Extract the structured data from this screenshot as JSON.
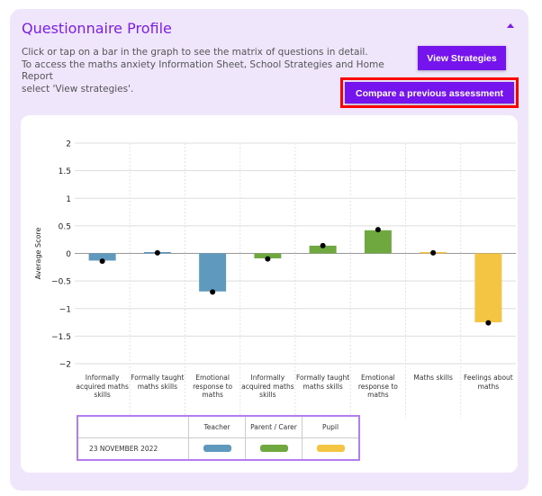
{
  "header": {
    "title": "Questionnaire Profile",
    "collapse_icon": "caret-up-icon"
  },
  "description": [
    "Click or tap on a bar in the graph to see the matrix of questions in detail.",
    "To access the maths anxiety Information Sheet, School Strategies and Home Report",
    "select 'View strategies'."
  ],
  "buttons": {
    "view_strategies": "View Strategies",
    "compare": "Compare a previous assessment"
  },
  "colors": {
    "accent": "#7614ee",
    "teacher": "#5f99bd",
    "parent": "#6ea83f",
    "pupil": "#f4c542"
  },
  "chart_data": {
    "type": "bar",
    "ylabel": "Average Score",
    "ylim": [
      -2,
      2
    ],
    "yticks": [
      "2",
      "1.5",
      "1",
      "0.5",
      "0",
      "−0.5",
      "−1",
      "−1.5",
      "−2"
    ],
    "grid": true,
    "categories": [
      "Informally acquired maths skills",
      "Formally taught maths skills",
      "Emotional response to maths",
      "Informally acquired maths skills",
      "Formally taught maths skills",
      "Emotional response to maths",
      "Maths skills",
      "Feelings about maths"
    ],
    "category_group": [
      "teacher",
      "teacher",
      "teacher",
      "parent",
      "parent",
      "parent",
      "pupil",
      "pupil"
    ],
    "values": [
      -0.13,
      0.01,
      -0.69,
      -0.09,
      0.14,
      0.42,
      0.01,
      -1.25
    ],
    "markers": [
      -0.14,
      0.01,
      -0.7,
      -0.1,
      0.14,
      0.43,
      0.01,
      -1.26
    ]
  },
  "legend": {
    "headers": [
      "Teacher",
      "Parent / Carer",
      "Pupil"
    ],
    "row_label": "23 NOVEMBER 2022"
  }
}
